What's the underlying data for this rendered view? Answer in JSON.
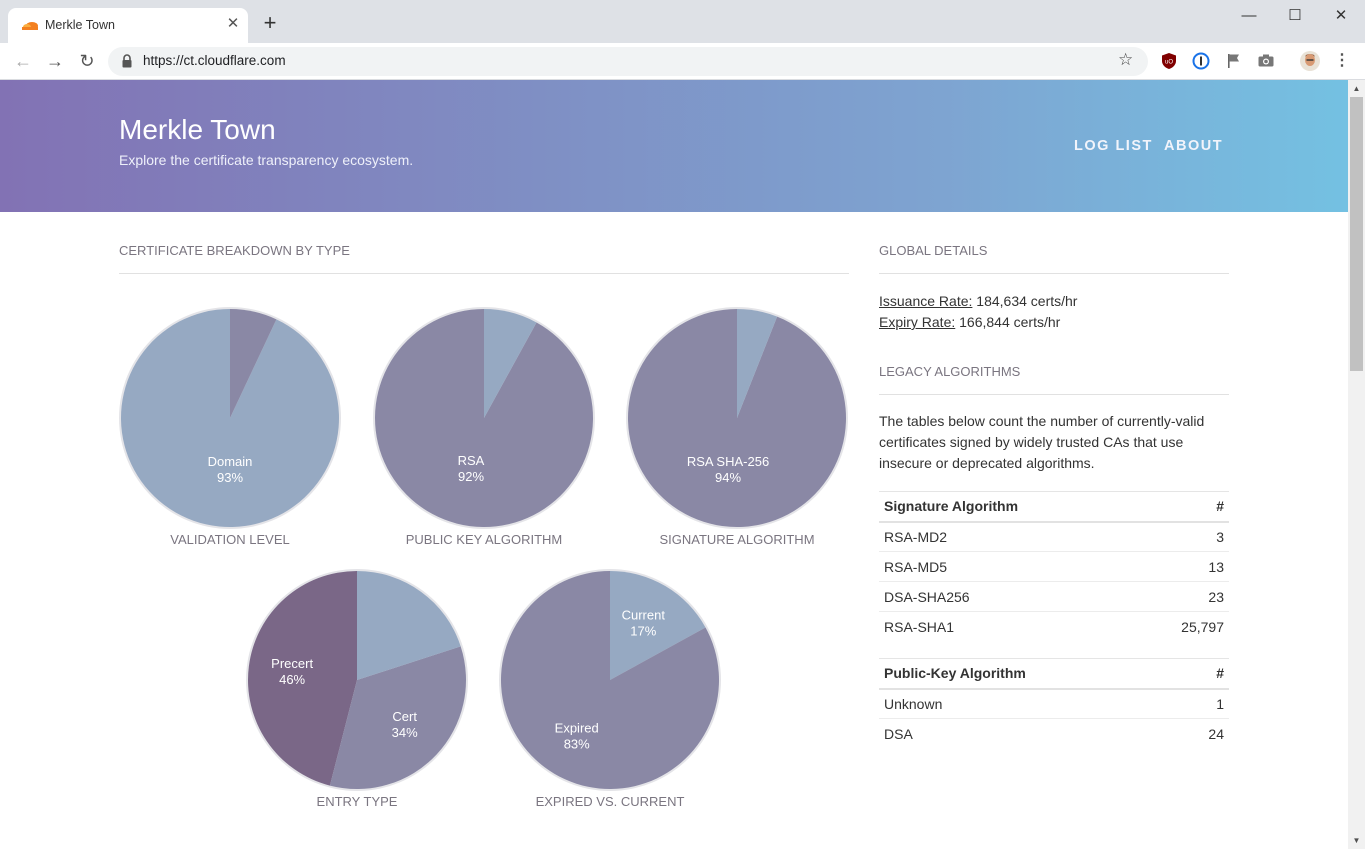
{
  "browser": {
    "tab_title": "Merkle Town",
    "url": "https://ct.cloudflare.com",
    "new_tab": "+",
    "close_tab": "✕"
  },
  "header": {
    "title": "Merkle Town",
    "subtitle": "Explore the certificate transparency ecosystem.",
    "nav": [
      "LOG LIST",
      "ABOUT"
    ]
  },
  "breakdown": {
    "heading": "CERTIFICATE BREAKDOWN BY TYPE",
    "charts": [
      {
        "label": "VALIDATION LEVEL",
        "slices": [
          {
            "name": "Domain",
            "pct": 93,
            "color": "#96a9c2"
          },
          {
            "name": "",
            "pct": 7,
            "color": "#8a88a5"
          }
        ],
        "shown": "Domain",
        "shown_pct": "93%"
      },
      {
        "label": "PUBLIC KEY ALGORITHM",
        "slices": [
          {
            "name": "RSA",
            "pct": 92,
            "color": "#8a88a5"
          },
          {
            "name": "",
            "pct": 8,
            "color": "#96a9c2"
          }
        ],
        "shown": "RSA",
        "shown_pct": "92%"
      },
      {
        "label": "SIGNATURE ALGORITHM",
        "slices": [
          {
            "name": "RSA SHA-256",
            "pct": 94,
            "color": "#8a88a5"
          },
          {
            "name": "",
            "pct": 6,
            "color": "#96a9c2"
          }
        ],
        "shown": "RSA SHA-256",
        "shown_pct": "94%"
      },
      {
        "label": "ENTRY TYPE",
        "slices": [
          {
            "name": "Precert",
            "pct": 46,
            "color": "#7a6787"
          },
          {
            "name": "Cert",
            "pct": 34,
            "color": "#8a88a5"
          },
          {
            "name": "",
            "pct": 20,
            "color": "#96a9c2"
          }
        ]
      },
      {
        "label": "EXPIRED VS. CURRENT",
        "slices": [
          {
            "name": "Current",
            "pct": 17,
            "color": "#96a9c2"
          },
          {
            "name": "Expired",
            "pct": 83,
            "color": "#8a88a5"
          }
        ]
      }
    ]
  },
  "global": {
    "heading": "GLOBAL DETAILS",
    "issuance_label": "Issuance Rate:",
    "issuance_value": " 184,634 certs/hr",
    "expiry_label": "Expiry Rate:",
    "expiry_value": " 166,844 certs/hr"
  },
  "legacy": {
    "heading": "LEGACY ALGORITHMS",
    "description": "The tables below count the number of currently-valid certificates signed by widely trusted CAs that use insecure or deprecated algorithms.",
    "signature_table": {
      "headers": [
        "Signature Algorithm",
        "#"
      ],
      "rows": [
        [
          "RSA-MD2",
          "3"
        ],
        [
          "RSA-MD5",
          "13"
        ],
        [
          "DSA-SHA256",
          "23"
        ],
        [
          "RSA-SHA1",
          "25,797"
        ]
      ]
    },
    "pubkey_table": {
      "headers": [
        "Public-Key Algorithm",
        "#"
      ],
      "rows": [
        [
          "Unknown",
          "1"
        ],
        [
          "DSA",
          "24"
        ]
      ]
    }
  },
  "chart_data": [
    {
      "type": "pie",
      "title": "VALIDATION LEVEL",
      "labels": [
        "Domain",
        ""
      ],
      "values": [
        93,
        7
      ]
    },
    {
      "type": "pie",
      "title": "PUBLIC KEY ALGORITHM",
      "labels": [
        "RSA",
        ""
      ],
      "values": [
        92,
        8
      ]
    },
    {
      "type": "pie",
      "title": "SIGNATURE ALGORITHM",
      "labels": [
        "RSA SHA-256",
        ""
      ],
      "values": [
        94,
        6
      ]
    },
    {
      "type": "pie",
      "title": "ENTRY TYPE",
      "labels": [
        "Precert",
        "Cert",
        ""
      ],
      "values": [
        46,
        34,
        20
      ]
    },
    {
      "type": "pie",
      "title": "EXPIRED VS. CURRENT",
      "labels": [
        "Current",
        "Expired"
      ],
      "values": [
        17,
        83
      ]
    }
  ]
}
